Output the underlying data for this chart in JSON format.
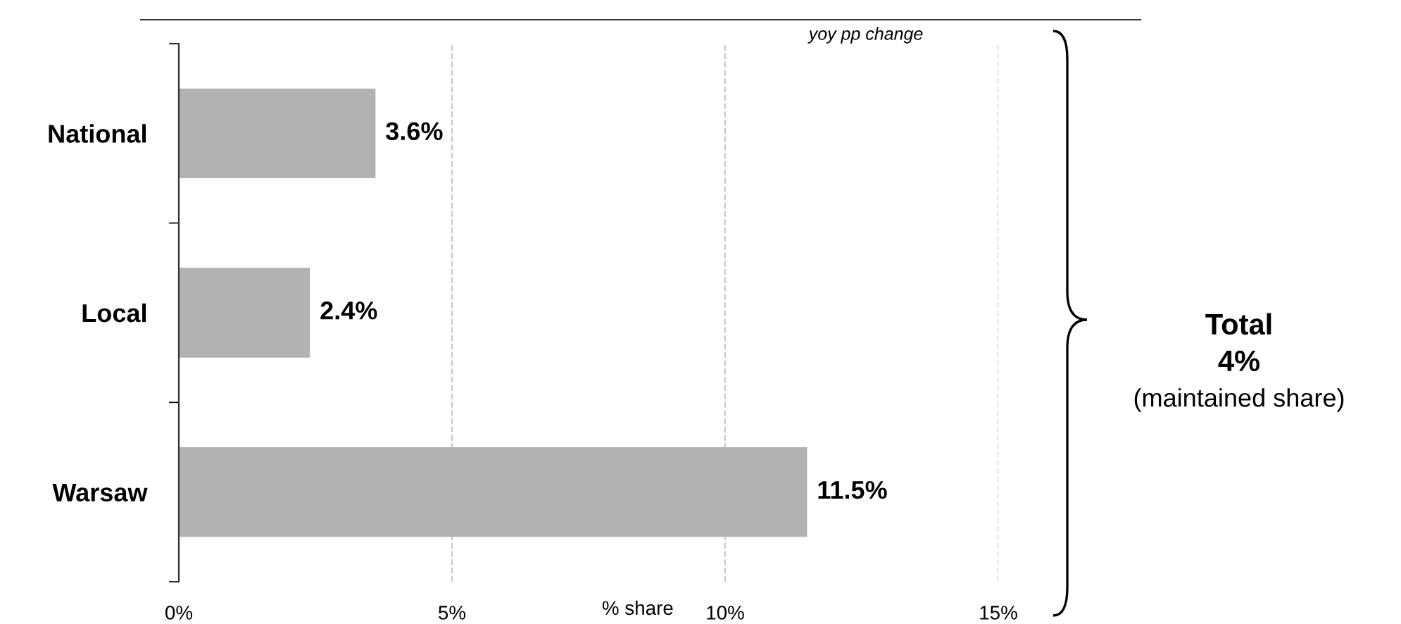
{
  "chart_data": {
    "type": "bar",
    "orientation": "horizontal",
    "categories": [
      "National",
      "Local",
      "Warsaw"
    ],
    "values": [
      3.6,
      2.4,
      11.5
    ],
    "value_labels": [
      "3.6%",
      "2.4%",
      "11.5%"
    ],
    "color": "#b2b2b2",
    "xlabel": "% share",
    "xlim": [
      0,
      15
    ],
    "xticks": [
      {
        "value": 0,
        "label": "0%"
      },
      {
        "value": 5,
        "label": "5%"
      },
      {
        "value": 10,
        "label": "10%"
      },
      {
        "value": 15,
        "label": "15%"
      }
    ],
    "grid": "x",
    "line_style": "dashed",
    "legend": false,
    "annotations": [
      "yoy pp change",
      "Total",
      "4%",
      "(maintained share)"
    ]
  }
}
